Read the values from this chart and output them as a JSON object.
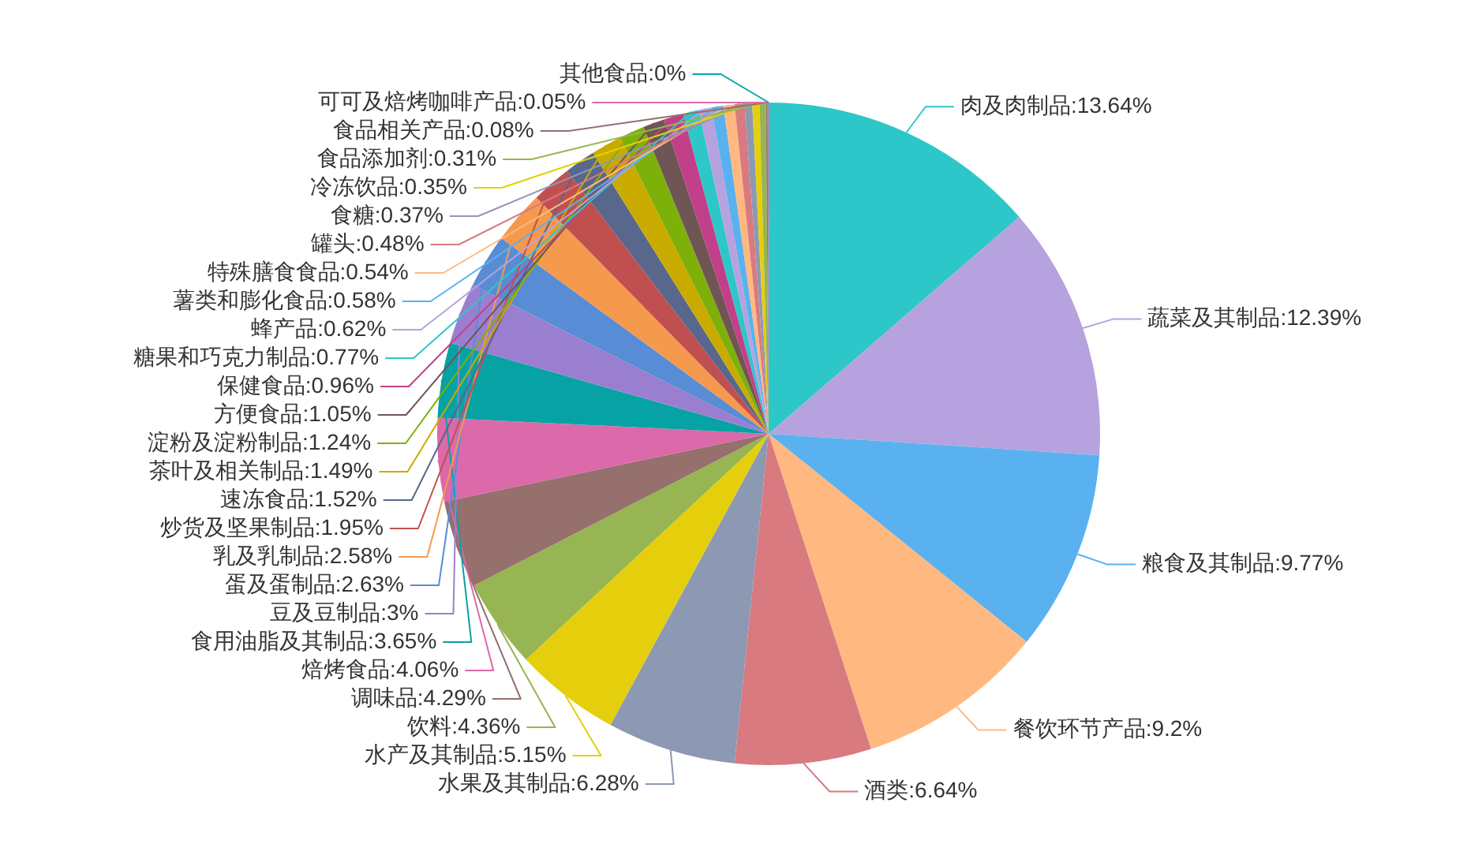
{
  "chart_data": {
    "type": "pie",
    "categories": [
      "肉及肉制品",
      "蔬菜及其制品",
      "粮食及其制品",
      "餐饮环节产品",
      "酒类",
      "水果及其制品",
      "水产及其制品",
      "饮料",
      "调味品",
      "焙烤食品",
      "食用油脂及其制品",
      "豆及豆制品",
      "蛋及蛋制品",
      "乳及乳制品",
      "炒货及坚果制品",
      "速冻食品",
      "茶叶及相关制品",
      "淀粉及淀粉制品",
      "方便食品",
      "保健食品",
      "糖果和巧克力制品",
      "蜂产品",
      "薯类和膨化食品",
      "特殊膳食食品",
      "罐头",
      "食糖",
      "冷冻饮品",
      "食品添加剂",
      "食品相关产品",
      "可可及焙烤咖啡产品",
      "其他食品"
    ],
    "values": [
      13.64,
      12.39,
      9.77,
      9.2,
      6.64,
      6.28,
      5.15,
      4.36,
      4.29,
      4.06,
      3.65,
      3,
      2.63,
      2.58,
      1.95,
      1.52,
      1.49,
      1.24,
      1.05,
      0.96,
      0.77,
      0.62,
      0.58,
      0.54,
      0.48,
      0.37,
      0.35,
      0.31,
      0.08,
      0.05,
      0
    ],
    "value_labels": [
      ":13.64%",
      ":12.39%",
      ":9.77%",
      ":9.2%",
      ":6.64%",
      ":6.28%",
      ":5.15%",
      ":4.36%",
      ":4.29%",
      ":4.06%",
      ":3.65%",
      ":3%",
      ":2.63%",
      ":2.58%",
      ":1.95%",
      ":1.52%",
      ":1.49%",
      ":1.24%",
      ":1.05%",
      ":0.96%",
      ":0.77%",
      ":0.62%",
      ":0.58%",
      ":0.54%",
      ":0.48%",
      ":0.37%",
      ":0.35%",
      ":0.31%",
      ":0.08%",
      ":0.05%",
      ":0%"
    ],
    "colors": [
      "#2ec7c9",
      "#b6a2de",
      "#5ab1ef",
      "#ffb980",
      "#d87a80",
      "#8d98b3",
      "#e5cf0d",
      "#97b552",
      "#95706d",
      "#dc69aa",
      "#07a2a4",
      "#9a7fd1",
      "#588dd5",
      "#f5994e",
      "#c05050",
      "#59678c",
      "#c9ab00",
      "#7eb00a",
      "#6f5553",
      "#c14089",
      "#2ec7c9",
      "#b6a2de",
      "#5ab1ef",
      "#ffb980",
      "#d87a80",
      "#8d98b3",
      "#e5cf0d",
      "#97b552",
      "#95706d",
      "#dc69aa",
      "#07a2a4"
    ],
    "legend": false
  }
}
